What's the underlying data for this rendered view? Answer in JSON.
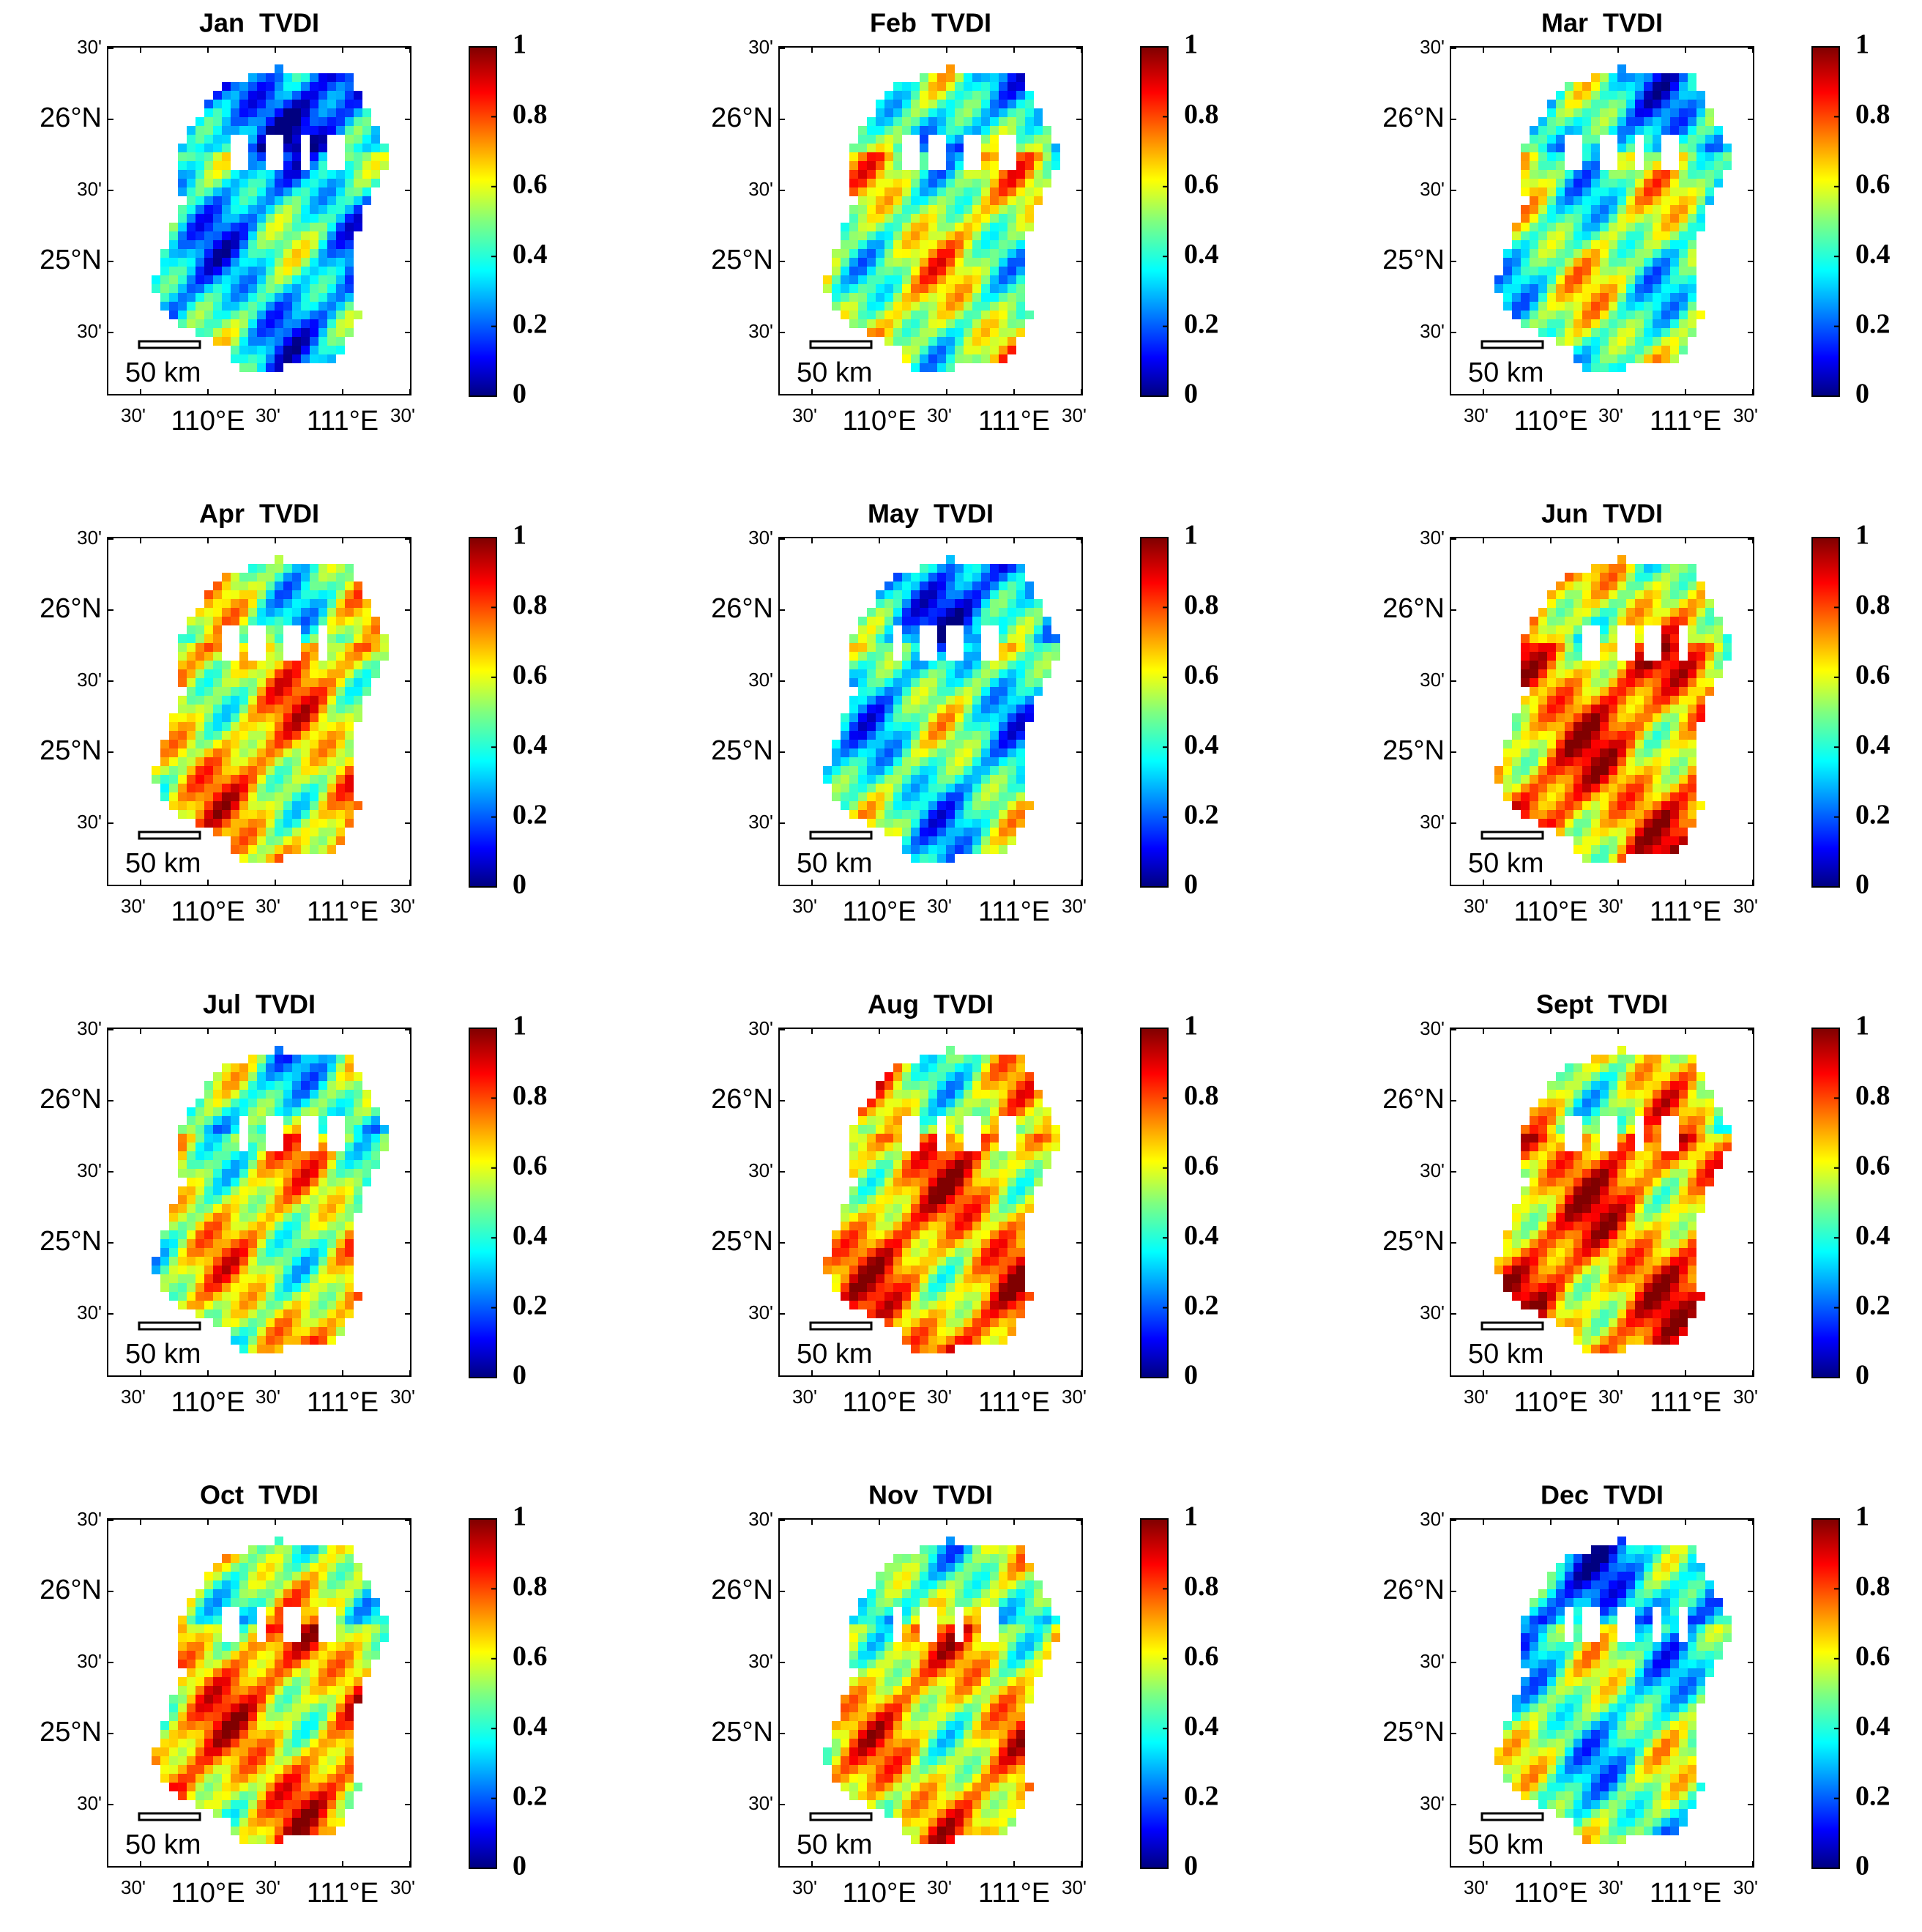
{
  "panels": [
    {
      "title": "Jan  TVDI"
    },
    {
      "title": "Feb  TVDI"
    },
    {
      "title": "Mar  TVDI"
    },
    {
      "title": "Apr  TVDI"
    },
    {
      "title": "May  TVDI"
    },
    {
      "title": "Jun  TVDI"
    },
    {
      "title": "Jul  TVDI"
    },
    {
      "title": "Aug  TVDI"
    },
    {
      "title": "Sept  TVDI"
    },
    {
      "title": "Oct  TVDI"
    },
    {
      "title": "Nov  TVDI"
    },
    {
      "title": "Dec  TVDI"
    }
  ],
  "lat_ticks": [
    "30'",
    "26°N",
    "30'",
    "25°N",
    "30'"
  ],
  "lon_ticks": [
    "30'",
    "110°E",
    "30'",
    "111°E",
    "30'"
  ],
  "colorbar": {
    "lim": [
      0,
      1
    ],
    "ticks": [
      0,
      0.2,
      0.4,
      0.6,
      0.8,
      1
    ]
  },
  "scale_bar": "50 km"
}
